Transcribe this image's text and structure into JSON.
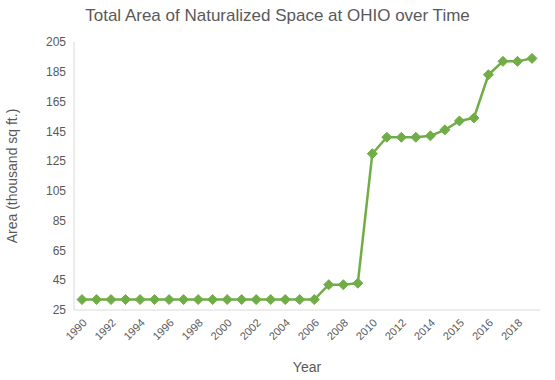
{
  "chart_data": {
    "type": "line",
    "title": "Total Area of Naturalized Space at OHIO over Time",
    "xlabel": "Year",
    "ylabel": "Area (thousand sq ft.)",
    "categories": [
      "1990",
      null,
      "1992",
      null,
      "1994",
      null,
      "1996",
      null,
      "1998",
      null,
      "2000",
      null,
      "2002",
      null,
      "2004",
      null,
      "2006",
      null,
      "2008",
      null,
      "2010",
      null,
      "2012",
      null,
      "2014",
      null,
      "2015",
      null,
      "2016",
      null,
      "2018",
      null
    ],
    "values": [
      32,
      32,
      32,
      32,
      32,
      32,
      32,
      32,
      32,
      32,
      32,
      32,
      32,
      32,
      32,
      32,
      32,
      42,
      42,
      43,
      130,
      141,
      141,
      141,
      142,
      146,
      152,
      154,
      183,
      192,
      192,
      194
    ],
    "color": "#70ad47",
    "marker": "diamond",
    "ylim": [
      25,
      205
    ],
    "yticks": [
      25,
      45,
      65,
      85,
      105,
      125,
      145,
      165,
      185,
      205
    ],
    "grid": false
  }
}
